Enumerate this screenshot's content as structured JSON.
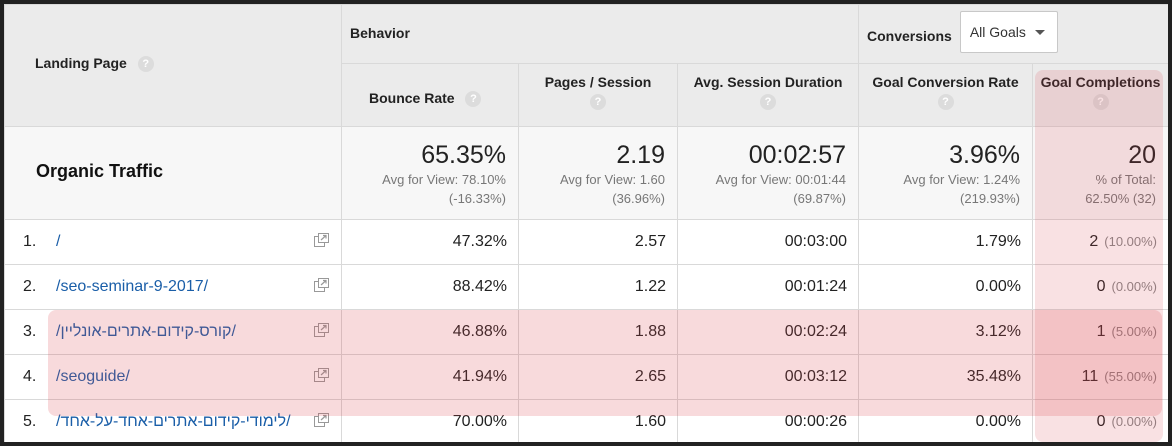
{
  "header": {
    "landing_page": "Landing Page",
    "behavior": "Behavior",
    "conversions": "Conversions",
    "goal_select": "All Goals",
    "help": "?"
  },
  "columns": {
    "bounce_rate": "Bounce Rate",
    "pages_session": "Pages / Session",
    "avg_duration": "Avg. Session Duration",
    "goal_conv_rate": "Goal Conversion Rate",
    "goal_completions": "Goal Completions"
  },
  "summary": {
    "label": "Organic Traffic",
    "bounce_rate": {
      "value": "65.35%",
      "line1": "Avg for View: 78.10%",
      "line2": "(-16.33%)"
    },
    "pages_session": {
      "value": "2.19",
      "line1": "Avg for View: 1.60",
      "line2": "(36.96%)"
    },
    "avg_duration": {
      "value": "00:02:57",
      "line1": "Avg for View: 00:01:44",
      "line2": "(69.87%)"
    },
    "goal_conv_rate": {
      "value": "3.96%",
      "line1": "Avg for View: 1.24%",
      "line2": "(219.93%)"
    },
    "goal_completions": {
      "value": "20",
      "line1": "% of Total:",
      "line2": "62.50% (32)"
    }
  },
  "rows": [
    {
      "num": "1.",
      "page": "/",
      "bounce": "47.32%",
      "pages": "2.57",
      "duration": "00:03:00",
      "conv_rate": "1.79%",
      "completions": "2",
      "pct": "(10.00%)"
    },
    {
      "num": "2.",
      "page": "/seo-seminar-9-2017/",
      "bounce": "88.42%",
      "pages": "1.22",
      "duration": "00:01:24",
      "conv_rate": "0.00%",
      "completions": "0",
      "pct": "(0.00%)"
    },
    {
      "num": "3.",
      "page": "/קורס-קידום-אתרים-אונליין/",
      "bounce": "46.88%",
      "pages": "1.88",
      "duration": "00:02:24",
      "conv_rate": "3.12%",
      "completions": "1",
      "pct": "(5.00%)"
    },
    {
      "num": "4.",
      "page": "/seoguide/",
      "bounce": "41.94%",
      "pages": "2.65",
      "duration": "00:03:12",
      "conv_rate": "35.48%",
      "completions": "11",
      "pct": "(55.00%)"
    },
    {
      "num": "5.",
      "page": "/לימודי-קידום-אתרים-אחד-על-אחד/",
      "bounce": "70.00%",
      "pages": "1.60",
      "duration": "00:00:26",
      "conv_rate": "0.00%",
      "completions": "0",
      "pct": "(0.00%)"
    }
  ],
  "colors": {
    "link": "#1a5ea8",
    "header_bg": "#ebebeb",
    "highlight": "#dc4650"
  }
}
